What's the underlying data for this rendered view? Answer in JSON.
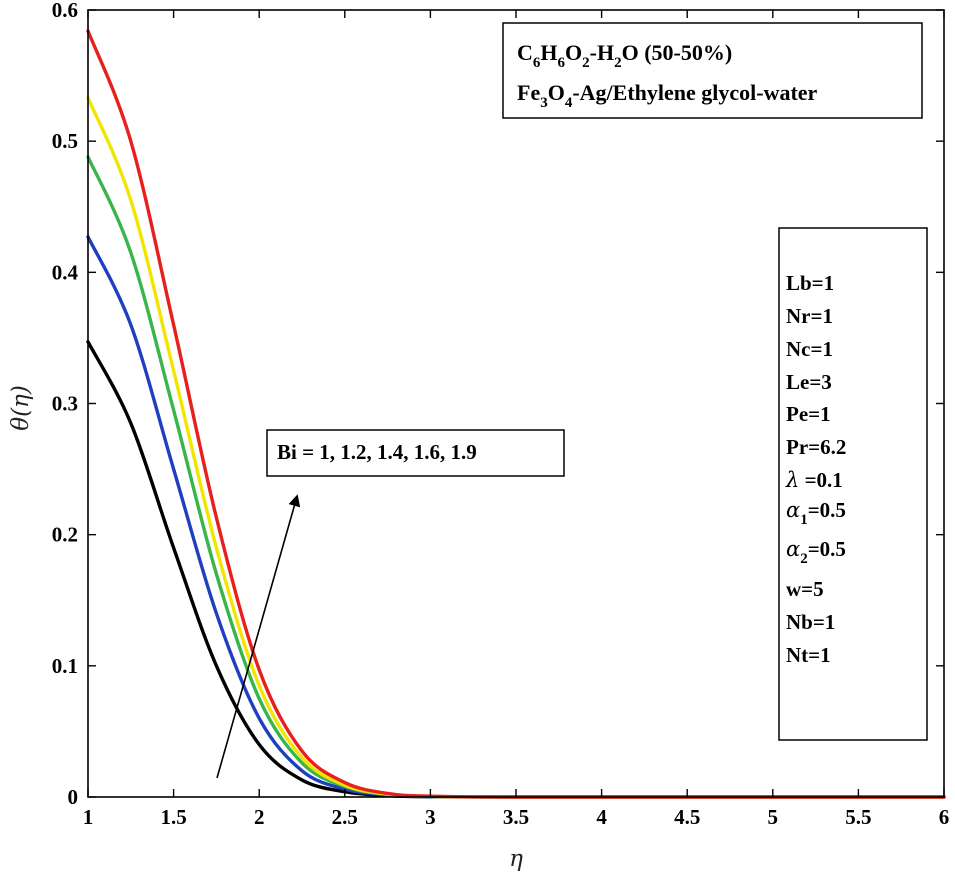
{
  "chart_data": {
    "type": "line",
    "title": "",
    "xlabel": "η",
    "ylabel": "θ(η)",
    "xlim": [
      1,
      6
    ],
    "ylim": [
      0,
      0.6
    ],
    "xticks": [
      "1",
      "1.5",
      "2",
      "2.5",
      "3",
      "3.5",
      "4",
      "4.5",
      "5",
      "5.5",
      "6"
    ],
    "yticks": [
      "0",
      "0.1",
      "0.2",
      "0.3",
      "0.4",
      "0.5",
      "0.6"
    ],
    "x": [
      1.0,
      1.25,
      1.5,
      1.75,
      2.0,
      2.25,
      2.5,
      2.75,
      3.0,
      3.5,
      4.0,
      5.0,
      6.0
    ],
    "series": [
      {
        "name": "Bi = 1",
        "color": "#000000",
        "values": [
          0.347,
          0.285,
          0.19,
          0.1,
          0.04,
          0.013,
          0.004,
          0.001,
          0.0002,
          0.0,
          0.0,
          0.0,
          0.0
        ]
      },
      {
        "name": "Bi = 1.2",
        "color": "#1f3fbf",
        "values": [
          0.427,
          0.36,
          0.25,
          0.14,
          0.06,
          0.02,
          0.006,
          0.0015,
          0.0003,
          0.0,
          0.0,
          0.0,
          0.0
        ]
      },
      {
        "name": "Bi = 1.4",
        "color": "#39b54a",
        "values": [
          0.488,
          0.415,
          0.295,
          0.17,
          0.075,
          0.026,
          0.008,
          0.002,
          0.0004,
          0.0,
          0.0,
          0.0,
          0.0
        ]
      },
      {
        "name": "Bi = 1.6",
        "color": "#f2e600",
        "values": [
          0.533,
          0.455,
          0.325,
          0.19,
          0.085,
          0.03,
          0.009,
          0.0022,
          0.0005,
          0.0,
          0.0,
          0.0,
          0.0
        ]
      },
      {
        "name": "Bi = 1.9",
        "color": "#e8201d",
        "values": [
          0.584,
          0.5,
          0.36,
          0.213,
          0.097,
          0.035,
          0.011,
          0.0027,
          0.0006,
          0.0,
          0.0,
          0.0,
          0.0
        ]
      }
    ],
    "annotation": {
      "text": "Bi = 1, 1.2, 1.4, 1.6, 1.9",
      "arrow": "increasing"
    },
    "title_box": {
      "line1": {
        "a": "C",
        "s1": "6",
        "b": "H",
        "s2": "6",
        "c": "O",
        "s3": "2",
        "d": "-H",
        "s4": "2",
        "e": "O (50-50%)"
      },
      "line2": {
        "a": "Fe",
        "s1": "3",
        "b": "O",
        "s2": "4",
        "c": "-Ag/Ethylene glycol-water"
      }
    },
    "params": {
      "items": [
        "Lb=1",
        "Nr=1",
        "Nc=1",
        "Le=3",
        "Pe=1",
        "Pr=6.2"
      ],
      "lambda": {
        "sym": "λ",
        "text": " =0.1"
      },
      "alpha1": {
        "sym": "α",
        "sub": "1",
        "text": "=0.5"
      },
      "alpha2": {
        "sym": "α",
        "sub": "2",
        "text": "=0.5"
      },
      "items2": [
        "w=5",
        "Nb=1",
        "Nt=1"
      ]
    }
  }
}
